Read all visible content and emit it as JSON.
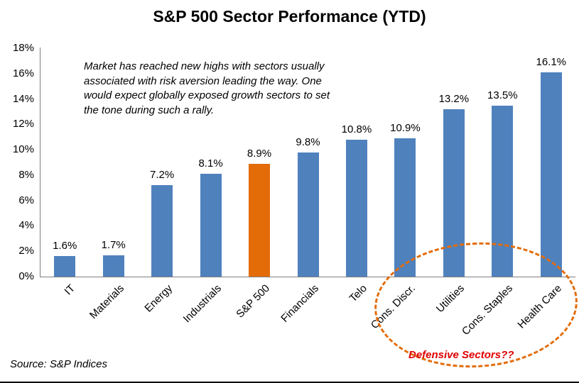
{
  "title": "S&P 500 Sector Performance (YTD)",
  "annotation": "Market has reached new highs with sectors usually associated with risk aversion leading the way. One would expect globally exposed growth sectors to set the tone during such a rally.",
  "callout": {
    "label": "Defensive Sectors??",
    "color": "#e00000"
  },
  "source": "Source: S&P Indices",
  "colors": {
    "bar": "#4f81bd",
    "highlight": "#e36c09",
    "ellipse": "#e36c09",
    "axis": "#7f7f7f"
  },
  "chart_data": {
    "type": "bar",
    "title": "S&P 500 Sector Performance (YTD)",
    "categories": [
      "IT",
      "Materials",
      "Energy",
      "Industrials",
      "S&P 500",
      "Financials",
      "Telo",
      "Cons. Discr.",
      "Utilities",
      "Cons. Staples",
      "Health Care"
    ],
    "values": [
      1.6,
      1.7,
      7.2,
      8.1,
      8.9,
      9.8,
      10.8,
      10.9,
      13.2,
      13.5,
      16.1
    ],
    "value_labels": [
      "1.6%",
      "1.7%",
      "7.2%",
      "8.1%",
      "8.9%",
      "9.8%",
      "10.8%",
      "10.9%",
      "13.2%",
      "13.5%",
      "16.1%"
    ],
    "highlight_index": 4,
    "xlabel": "",
    "ylabel": "",
    "ylim": [
      0,
      18
    ],
    "y_ticks": [
      "0%",
      "2%",
      "4%",
      "6%",
      "8%",
      "10%",
      "12%",
      "14%",
      "16%",
      "18%"
    ],
    "grid": false,
    "legend": "none",
    "annotations": [
      "Market has reached new highs with sectors usually associated with risk aversion leading the way. One would expect globally exposed growth sectors to set the tone during such a rally.",
      "Defensive Sectors??"
    ]
  }
}
